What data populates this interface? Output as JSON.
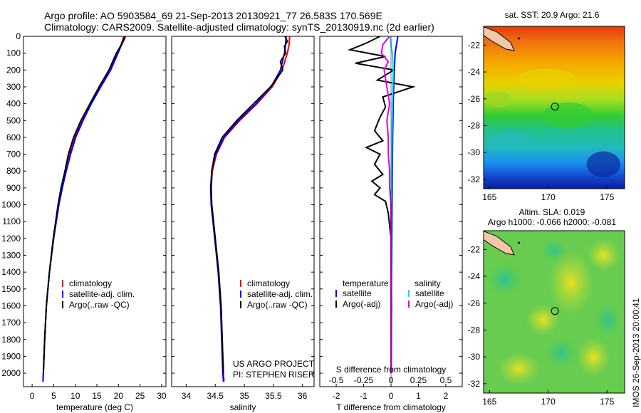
{
  "header": {
    "line1": "Argo profile: AO 5903584_69 21-Sep-2013 20130921_77 26.583S 170.569E",
    "line2": "Climatology: CARS2009. Satellite-adjusted climatology: synTS_20130919.nc (2d earlier)"
  },
  "side_label": "IMOS 26-Sep-2013 20:00:41",
  "colors": {
    "climatology": "#e60000",
    "satellite": "#0000ff",
    "argo": "#000000",
    "cyan": "#00e0e0",
    "magenta": "#e000e0"
  },
  "chart_data": [
    {
      "type": "line",
      "xlabel": "temperature (deg C)",
      "ylabel": "",
      "xlim": [
        -2,
        31
      ],
      "ylim": [
        2080,
        0
      ],
      "xticks": [
        0,
        5,
        10,
        15,
        20,
        25,
        30
      ],
      "yticks": [
        0,
        100,
        200,
        300,
        400,
        500,
        600,
        700,
        800,
        900,
        1000,
        1100,
        1200,
        1300,
        1400,
        1500,
        1600,
        1700,
        1800,
        1900,
        2000
      ],
      "legend": [
        "climatology",
        "satellite-adj. clim.",
        "Argo(..raw -QC)"
      ],
      "series": [
        {
          "name": "climatology",
          "color": "#e60000",
          "y": [
            0,
            20,
            50,
            100,
            200,
            300,
            400,
            500,
            600,
            700,
            800,
            900,
            1000,
            1200,
            1400,
            1600,
            1800,
            2000,
            2050
          ],
          "x": [
            21.2,
            21.0,
            20.6,
            19.8,
            18.0,
            15.8,
            13.6,
            11.6,
            9.9,
            8.7,
            7.8,
            6.9,
            6.1,
            4.9,
            4.0,
            3.3,
            2.9,
            2.6,
            2.5
          ]
        },
        {
          "name": "satellite-adj. clim.",
          "color": "#0000ff",
          "y": [
            0,
            20,
            50,
            100,
            200,
            300,
            400,
            500,
            600,
            700,
            800,
            900,
            1000,
            1200,
            1400,
            1600,
            1800,
            2000,
            2050
          ],
          "x": [
            21.4,
            21.2,
            20.7,
            19.9,
            18.2,
            15.9,
            13.7,
            11.8,
            10.1,
            8.9,
            7.9,
            7.0,
            6.2,
            5.0,
            4.0,
            3.3,
            2.9,
            2.6,
            2.5
          ]
        },
        {
          "name": "Argo(..raw -QC)",
          "color": "#000000",
          "y": [
            0,
            20,
            50,
            100,
            200,
            300,
            400,
            500,
            600,
            700,
            800,
            900,
            1000,
            1200,
            1400,
            1600,
            1800,
            2000
          ],
          "x": [
            21.6,
            21.3,
            20.7,
            19.5,
            17.8,
            15.5,
            13.4,
            11.3,
            9.6,
            8.4,
            7.6,
            6.7,
            6.0,
            4.9,
            4.0,
            3.3,
            2.9,
            2.6
          ]
        }
      ]
    },
    {
      "type": "line",
      "xlabel": "salinity",
      "ylabel": "",
      "xlim": [
        33.75,
        36.2
      ],
      "ylim": [
        2080,
        0
      ],
      "xticks": [
        34,
        34.5,
        35,
        35.5,
        36
      ],
      "legend": [
        "climatology",
        "satellite-adj. clim.",
        "Argo(..raw -QC)"
      ],
      "annotation": [
        "US ARGO PROJECT",
        "PI: STEPHEN RISER"
      ],
      "series": [
        {
          "name": "climatology",
          "color": "#e60000",
          "y": [
            0,
            50,
            100,
            200,
            300,
            400,
            500,
            600,
            700,
            800,
            900,
            1000,
            1100,
            1200,
            1300,
            1400,
            1500,
            1600,
            1700,
            1800,
            1900,
            2000,
            2050
          ],
          "x": [
            35.78,
            35.77,
            35.74,
            35.65,
            35.48,
            35.22,
            34.92,
            34.66,
            34.52,
            34.45,
            34.43,
            34.44,
            34.47,
            34.5,
            34.53,
            34.56,
            34.58,
            34.6,
            34.61,
            34.62,
            34.63,
            34.64,
            34.65
          ]
        },
        {
          "name": "satellite-adj. clim.",
          "color": "#0000ff",
          "y": [
            0,
            50,
            100,
            200,
            300,
            400,
            500,
            600,
            700,
            800,
            900,
            1000,
            1100,
            1200,
            1300,
            1400,
            1500,
            1600,
            1700,
            1800,
            1900,
            2000,
            2050
          ],
          "x": [
            35.72,
            35.71,
            35.69,
            35.62,
            35.46,
            35.2,
            34.9,
            34.65,
            34.51,
            34.44,
            34.42,
            34.43,
            34.46,
            34.49,
            34.52,
            34.55,
            34.57,
            34.59,
            34.6,
            34.61,
            34.62,
            34.63,
            34.64
          ]
        },
        {
          "name": "Argo(..raw -QC)",
          "color": "#000000",
          "y": [
            0,
            30,
            60,
            100,
            150,
            200,
            250,
            300,
            400,
            500,
            600,
            700,
            800,
            900,
            1000,
            1100,
            1200,
            1400,
            1600,
            1800,
            2000
          ],
          "x": [
            35.7,
            35.74,
            35.69,
            35.71,
            35.62,
            35.66,
            35.56,
            35.45,
            35.16,
            34.87,
            34.62,
            34.49,
            34.44,
            34.43,
            34.44,
            34.47,
            34.5,
            34.56,
            34.6,
            34.62,
            34.64
          ]
        }
      ]
    },
    {
      "type": "line",
      "xlabel": "T difference from climatology",
      "ylabel": "",
      "xlim": [
        -2.6,
        2.6
      ],
      "ylim": [
        2080,
        0
      ],
      "xticks": [
        -2,
        -1,
        0,
        1,
        2
      ],
      "top_ticks": [
        "-0.5",
        "-0.25",
        "0",
        "0.25",
        "0.5"
      ],
      "top_label": "S difference from climatology",
      "legend_left_title": "temperature",
      "legend_right_title": "salinity",
      "legend": [
        "satellite",
        "Argo(-adj)",
        "satellite",
        "Argo(-adj)"
      ],
      "series": [
        {
          "name": "satellite",
          "color": "#0000ff",
          "y": [
            0,
            50,
            100,
            200,
            300,
            400,
            600,
            800,
            1000,
            1500,
            2000
          ],
          "x": [
            0.25,
            0.2,
            0.15,
            0.12,
            0.1,
            0.08,
            0.06,
            0.05,
            0.04,
            0.02,
            0.01
          ]
        },
        {
          "name": "Argo(-adj)",
          "color": "#000000",
          "y": [
            0,
            40,
            80,
            120,
            160,
            200,
            260,
            300,
            360,
            420,
            480,
            560,
            620,
            660,
            700,
            760,
            820,
            860,
            900,
            940,
            980,
            1050,
            1200,
            1400,
            1600,
            1800,
            2000
          ],
          "x": [
            -0.4,
            -0.9,
            -1.5,
            -0.2,
            -1.3,
            0.1,
            -0.5,
            0.8,
            -0.3,
            -0.2,
            -0.4,
            -0.6,
            -0.3,
            -0.9,
            -0.4,
            -0.6,
            -0.3,
            -0.7,
            -0.4,
            -0.6,
            -0.2,
            -0.1,
            0.0,
            0.0,
            0.02,
            0.0,
            0.0
          ]
        },
        {
          "name": "satellite (S)",
          "color": "#00e0e0",
          "y": [
            0,
            50,
            100,
            200,
            400,
            600,
            800,
            1000,
            1500,
            2000
          ],
          "x": [
            -0.02,
            0.0,
            0.05,
            0.08,
            0.05,
            0.03,
            0.02,
            0.01,
            0.01,
            0.0
          ]
        },
        {
          "name": "Argo(-adj) (S)",
          "color": "#e000e0",
          "y": [
            0,
            50,
            100,
            150,
            200,
            300,
            400,
            500,
            600,
            700,
            800,
            900,
            1000,
            1200,
            1500,
            2000
          ],
          "x": [
            -0.05,
            -0.3,
            -0.35,
            -0.1,
            -0.25,
            -0.15,
            -0.05,
            -0.15,
            -0.1,
            -0.1,
            -0.05,
            -0.05,
            0.0,
            0.0,
            0.0,
            0.0
          ]
        }
      ]
    },
    {
      "type": "heatmap",
      "title": "sat. SST: 20.9 Argo: 21.6",
      "xlim": [
        164.5,
        176.5
      ],
      "ylim": [
        -32.7,
        -20.6
      ],
      "xticks": [
        165,
        170,
        175
      ],
      "yticks": [
        -22,
        -24,
        -26,
        -28,
        -30,
        -32
      ],
      "marker": {
        "lon": 170.569,
        "lat": -26.583
      }
    },
    {
      "type": "heatmap",
      "title": "Altim. SLA: 0.019",
      "subtitle": "Argo h1000: -0.066 h2000: -0.081",
      "xlim": [
        164.5,
        176.5
      ],
      "ylim": [
        -32.7,
        -20.6
      ],
      "xticks": [
        165,
        170,
        175
      ],
      "yticks": [
        -22,
        -24,
        -26,
        -28,
        -30,
        -32
      ],
      "marker": {
        "lon": 170.569,
        "lat": -26.583
      }
    }
  ]
}
